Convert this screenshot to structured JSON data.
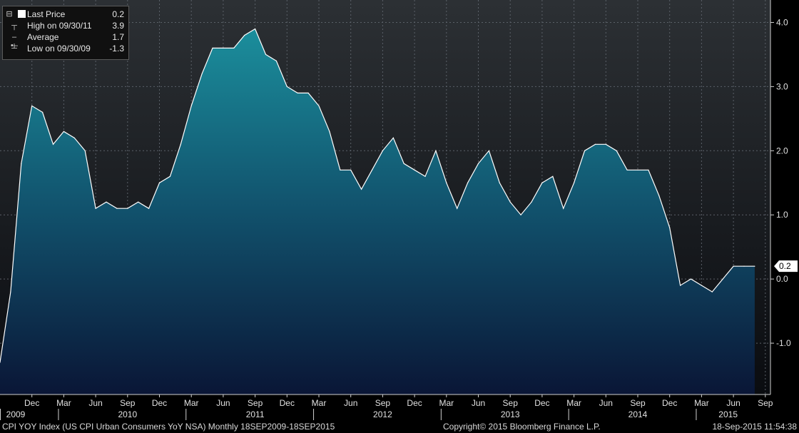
{
  "chart_data": {
    "type": "area",
    "ylim": [
      -1.8,
      4.35
    ],
    "y_ticks": [
      "4.0",
      "3.0",
      "2.0",
      "1.0",
      "0.0",
      "-1.0"
    ],
    "y_tick_values": [
      4.0,
      3.0,
      2.0,
      1.0,
      0.0,
      -1.0
    ],
    "x_month_labels": [
      "Dec",
      "Mar",
      "Jun",
      "Sep",
      "Dec",
      "Mar",
      "Jun",
      "Sep",
      "Dec",
      "Mar",
      "Jun",
      "Sep",
      "Dec",
      "Mar",
      "Jun",
      "Sep",
      "Dec",
      "Mar",
      "Jun",
      "Sep",
      "Dec",
      "Mar",
      "Jun",
      "Sep"
    ],
    "x_month_index": [
      3,
      6,
      9,
      12,
      15,
      18,
      21,
      24,
      27,
      30,
      33,
      36,
      39,
      42,
      45,
      48,
      51,
      54,
      57,
      60,
      63,
      66,
      69,
      72
    ],
    "x_year_labels": [
      "2009",
      "2010",
      "2011",
      "2012",
      "2013",
      "2014",
      "2015"
    ],
    "x_year_index": [
      0,
      6,
      18,
      30,
      42,
      54,
      66
    ],
    "x_start": "2009-09",
    "values": [
      -1.3,
      -0.2,
      1.8,
      2.7,
      2.6,
      2.1,
      2.3,
      2.2,
      2.0,
      1.1,
      1.2,
      1.1,
      1.1,
      1.2,
      1.1,
      1.5,
      1.6,
      2.1,
      2.7,
      3.2,
      3.6,
      3.6,
      3.6,
      3.8,
      3.9,
      3.5,
      3.4,
      3.0,
      2.9,
      2.9,
      2.7,
      2.3,
      1.7,
      1.7,
      1.4,
      1.7,
      2.0,
      2.2,
      1.8,
      1.7,
      1.6,
      2.0,
      1.5,
      1.1,
      1.5,
      1.8,
      2.0,
      1.5,
      1.2,
      1.0,
      1.2,
      1.5,
      1.6,
      1.1,
      1.5,
      2.0,
      2.1,
      2.1,
      2.0,
      1.7,
      1.7,
      1.7,
      1.3,
      0.8,
      -0.1,
      0.0,
      -0.1,
      -0.2,
      0.0,
      0.2,
      0.2,
      0.2
    ],
    "last_value_label": "0.2",
    "grid": true,
    "legend_position": "top-left"
  },
  "legend": {
    "last_price_label": "Last Price",
    "last_price_value": "0.2",
    "high_label": "High on 09/30/11",
    "high_value": "3.9",
    "average_label": "Average",
    "average_value": "1.7",
    "low_label": "Low on 09/30/09",
    "low_value": "-1.3"
  },
  "footer": {
    "index_desc": "CPI YOY Index (US CPI Urban Consumers YoY NSA)  Monthly 18SEP2009-18SEP2015",
    "copyright": "Copyright© 2015 Bloomberg Finance L.P.",
    "timestamp": "18-Sep-2015 11:54:38"
  },
  "colors": {
    "background_top": "#2b2f33",
    "background_bottom": "#0b0d10",
    "area_top": "#1a8a9a",
    "area_bottom": "#0d1a3a",
    "line": "#ffffff",
    "grid": "#5a6068"
  }
}
